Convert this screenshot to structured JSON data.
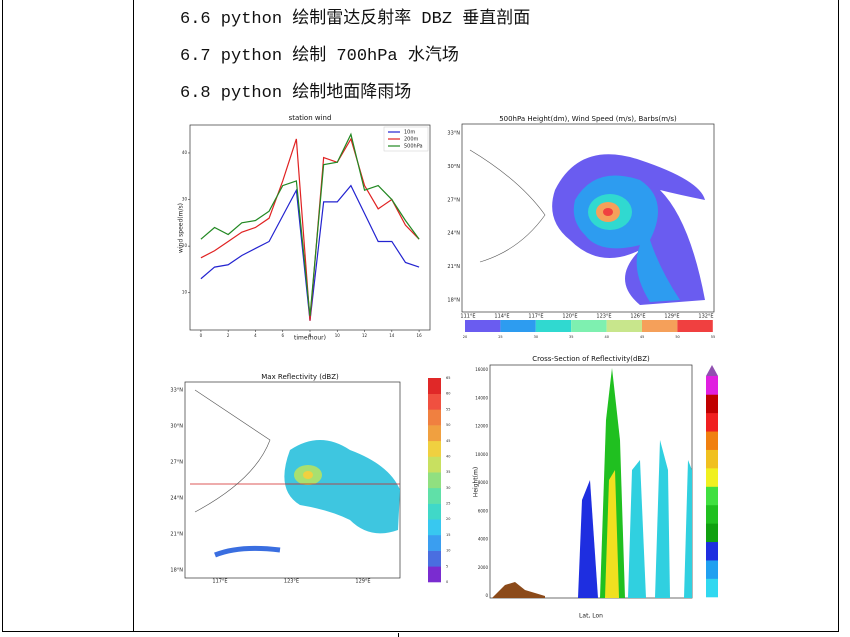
{
  "headings": [
    "6.6 python 绘制雷达反射率 DBZ 垂直剖面",
    "6.7 python 绘制 700hPa 水汽场",
    "6.8 python 绘制地面降雨场"
  ],
  "chart_data": {
    "type": "line",
    "title": "station wind",
    "x_label": "time(hour)",
    "y_label": "wind speed(m/s)",
    "x": [
      0,
      1,
      2,
      3,
      4,
      5,
      6,
      7,
      8,
      9,
      10,
      11,
      12,
      13,
      14,
      15,
      16
    ],
    "xlim": [
      -0.8,
      16.8
    ],
    "xticks": [
      0,
      2,
      4,
      6,
      8,
      10,
      12,
      14,
      16
    ],
    "ylim": [
      2,
      46
    ],
    "yticks": [
      10,
      20,
      30,
      40
    ],
    "legend": "upper right",
    "series": [
      {
        "name": "10m",
        "color": "#2323d0",
        "values": [
          13,
          15.5,
          16,
          18,
          19.5,
          21,
          26.5,
          32,
          4,
          29.5,
          29.5,
          33,
          27,
          21,
          21,
          16.5,
          15.5
        ]
      },
      {
        "name": "200m",
        "color": "#e02222",
        "values": [
          17.5,
          19,
          21,
          23,
          24,
          26,
          34,
          43,
          4,
          39,
          38,
          43,
          33,
          28,
          30,
          24.5,
          21.5
        ]
      },
      {
        "name": "500hPa",
        "color": "#228822",
        "values": [
          21.5,
          24,
          22.5,
          25,
          25.5,
          27.5,
          33,
          34,
          5,
          37.5,
          38,
          44,
          32,
          33,
          30,
          25.5,
          21.5
        ]
      }
    ]
  },
  "map500": {
    "title": "500hPa Height(dm), Wind Speed (m/s), Barbs(m/s)",
    "lat_ticks": [
      "33°N",
      "30°N",
      "27°N",
      "24°N",
      "21°N",
      "18°N"
    ],
    "lon_ticks": [
      "111°E",
      "114°E",
      "117°E",
      "120°E",
      "123°E",
      "126°E",
      "129°E",
      "132°E"
    ],
    "colorbar": [
      "20",
      "25",
      "30",
      "35",
      "40",
      "45",
      "50",
      "55"
    ]
  },
  "radar": {
    "title": "Max Reflectivity (dBZ)",
    "lat_ticks": [
      "33°N",
      "30°N",
      "27°N",
      "24°N",
      "21°N",
      "18°N"
    ],
    "lon_ticks": [
      "117°E",
      "123°E",
      "129°E"
    ],
    "colorbar": [
      "0",
      "5",
      "10",
      "15",
      "20",
      "25",
      "30",
      "35",
      "40",
      "45",
      "50",
      "55",
      "60",
      "65"
    ]
  },
  "section": {
    "title": "Cross-Section of Reflectivity(dBZ)",
    "y_label": "Height(m)",
    "x_label": "Lat, Lon",
    "yticks": [
      "0",
      "2000",
      "4000",
      "6000",
      "8000",
      "10000",
      "12000",
      "14000",
      "16000"
    ]
  }
}
